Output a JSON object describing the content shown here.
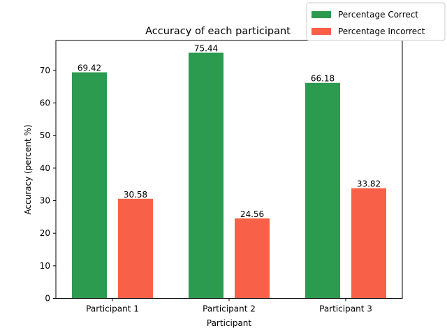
{
  "chart_data": {
    "type": "bar",
    "title": "Accuracy of each participant",
    "xlabel": "Participant",
    "ylabel": "Accuracy (percent %)",
    "categories": [
      "Participant 1",
      "Participant 2",
      "Participant 3"
    ],
    "series": [
      {
        "name": "Percentage Correct",
        "color": "#2c9a4f",
        "values": [
          69.42,
          75.44,
          66.18
        ]
      },
      {
        "name": "Percentage Incorrect",
        "color": "#f96048",
        "values": [
          30.58,
          24.56,
          33.82
        ]
      }
    ],
    "data_labels": [
      [
        "69.42",
        "75.44",
        "66.18"
      ],
      [
        "30.58",
        "24.56",
        "33.82"
      ]
    ],
    "yticks": [
      "0",
      "10",
      "20",
      "30",
      "40",
      "50",
      "60",
      "70"
    ],
    "ylim": [
      0,
      79.2
    ],
    "grid": false,
    "legend_position": "top-right"
  }
}
